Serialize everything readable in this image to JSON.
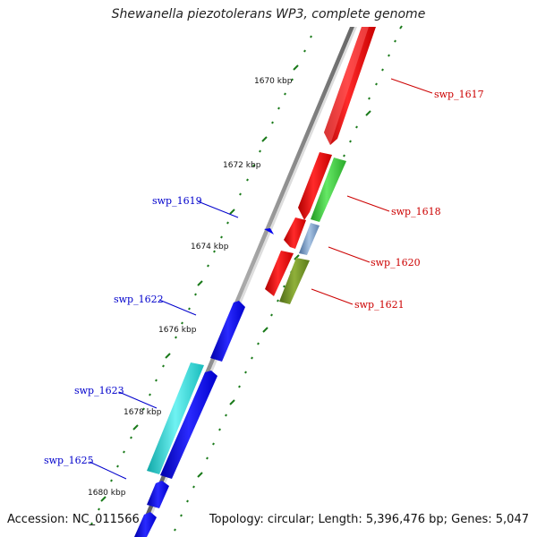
{
  "title": "Shewanella piezotolerans WP3, complete genome",
  "footer": {
    "accession": "Accession: NC_011566",
    "summary": "Topology: circular; Length: 5,396,476 bp; Genes: 5,047"
  },
  "colors": {
    "forward_label": "#cc0000",
    "reverse_label": "#0000cc",
    "backbone": "#8a8a8a",
    "ticks": "#1a7a1a"
  },
  "scale_labels": [
    "1670 kbp",
    "1672 kbp",
    "1674 kbp",
    "1676 kbp",
    "1678 kbp",
    "1680 kbp"
  ],
  "genes": [
    {
      "id": "swp_1617",
      "strand": "forward",
      "color": "#ff0000"
    },
    {
      "id": "swp_1618",
      "strand": "forward",
      "color": "#33cc33"
    },
    {
      "id": "swp_1619",
      "strand": "reverse",
      "color": "#0000ee"
    },
    {
      "id": "swp_1620",
      "strand": "forward",
      "color": "#6f8fb8"
    },
    {
      "id": "swp_1621",
      "strand": "forward",
      "color": "#6b8e23"
    },
    {
      "id": "swp_1622",
      "strand": "reverse",
      "color": "#0000ee"
    },
    {
      "id": "swp_1623",
      "strand": "reverse",
      "color": "#1ccccc"
    },
    {
      "id": "swp_1625",
      "strand": "reverse",
      "color": "#0000ee"
    }
  ]
}
